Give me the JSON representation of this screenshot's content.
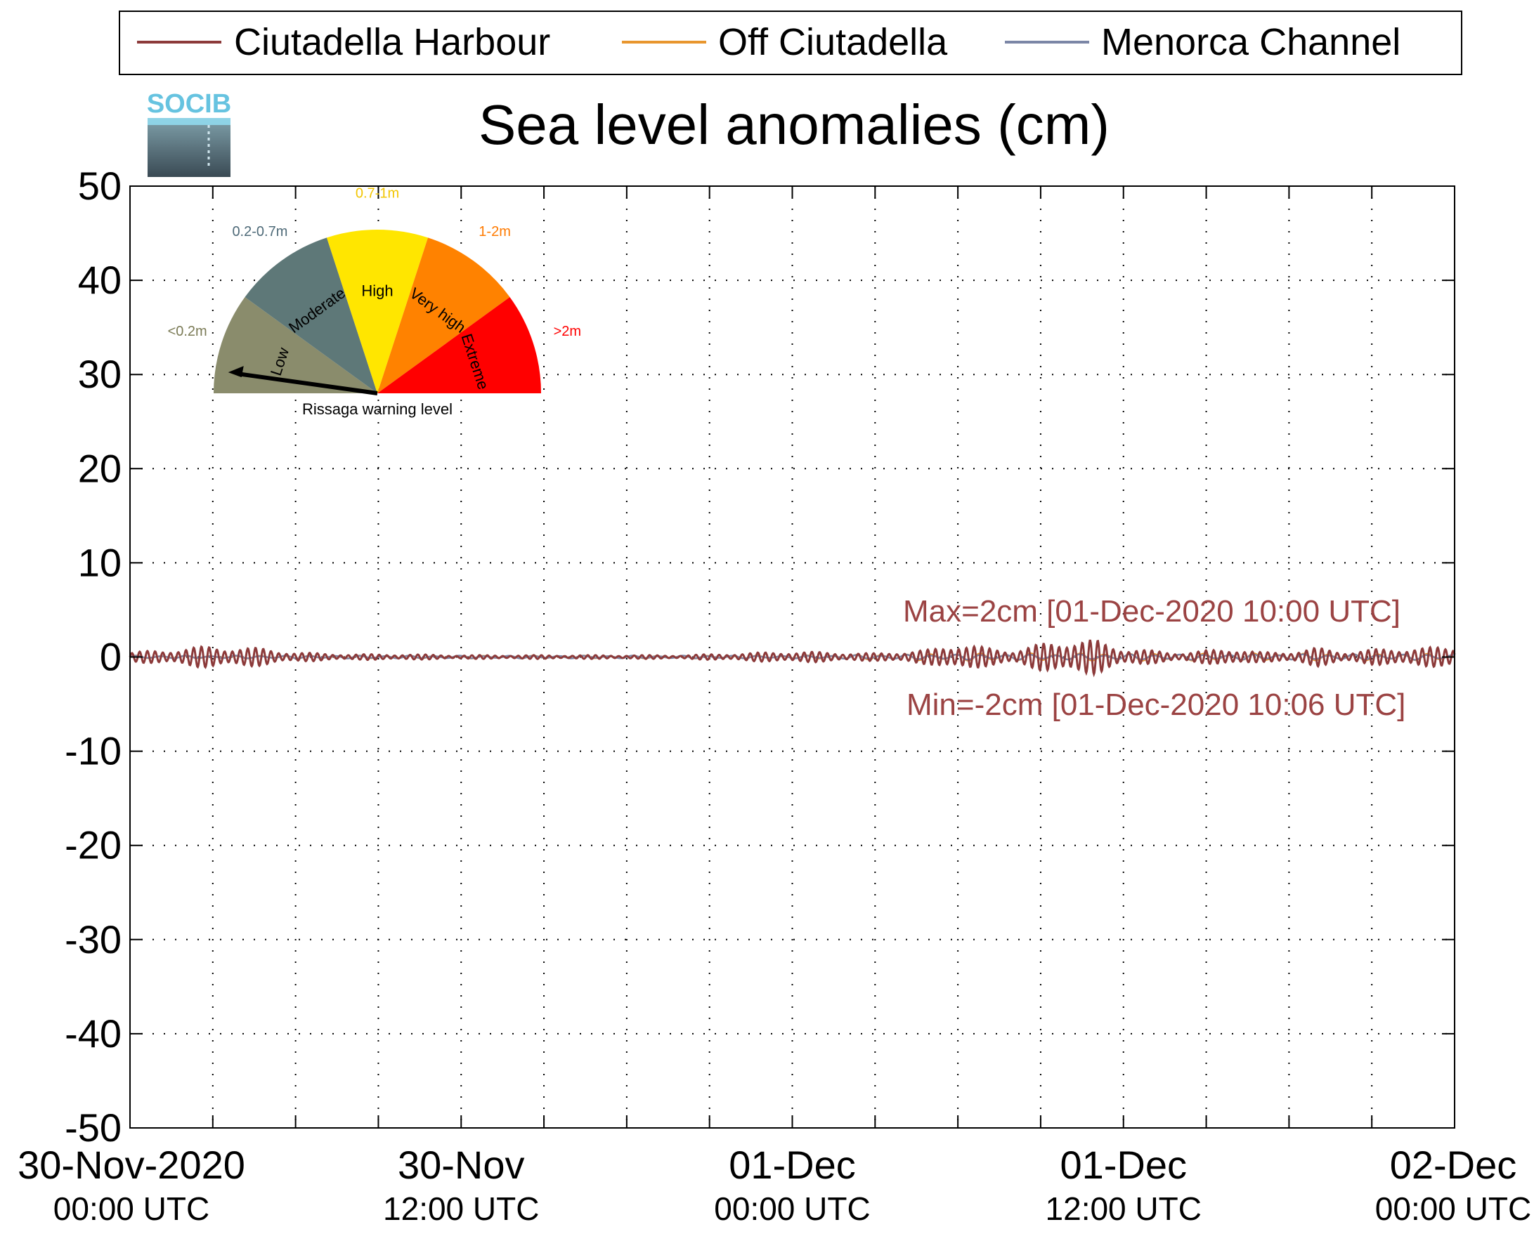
{
  "logo": {
    "text": "SOCIB"
  },
  "legend": {
    "items": [
      {
        "label": "Ciutadella Harbour",
        "color": "#8c3a3a"
      },
      {
        "label": "Off Ciutadella",
        "color": "#e8962e"
      },
      {
        "label": "Menorca Channel",
        "color": "#7b86a6"
      }
    ]
  },
  "gauge": {
    "title": "Rissaga warning level",
    "needle_level": "Low",
    "sectors": [
      {
        "name": "Low",
        "range": "<0.2m",
        "color": "#8a8c6c",
        "range_color": "#7a7a55"
      },
      {
        "name": "Moderate",
        "range": "0.2-0.7m",
        "color": "#5e7878",
        "range_color": "#4e6a78"
      },
      {
        "name": "High",
        "range": "0.7-1m",
        "color": "#ffe600",
        "range_color": "#f2c500"
      },
      {
        "name": "Very high",
        "range": "1-2m",
        "color": "#ff8200",
        "range_color": "#ff7a00"
      },
      {
        "name": "Extreme",
        "range": ">2m",
        "color": "#ff0000",
        "range_color": "#ff0000"
      }
    ]
  },
  "annotations": {
    "max": "Max=2cm [01-Dec-2020 10:00 UTC]",
    "min": "Min=-2cm [01-Dec-2020 10:06 UTC]",
    "color": "#9b4343"
  },
  "chart_data": {
    "type": "line",
    "title": "Sea level anomalies (cm)",
    "xlabel": "",
    "ylabel": "",
    "x_range_hours": [
      0,
      48
    ],
    "ylim": [
      -50,
      50
    ],
    "yticks": [
      -50,
      -40,
      -30,
      -20,
      -10,
      0,
      10,
      20,
      30,
      40,
      50
    ],
    "xticks": [
      {
        "hour": 0,
        "line1": "30-Nov-2020",
        "line2": "00:00 UTC"
      },
      {
        "hour": 12,
        "line1": "30-Nov",
        "line2": "12:00 UTC"
      },
      {
        "hour": 24,
        "line1": "01-Dec",
        "line2": "00:00 UTC"
      },
      {
        "hour": 36,
        "line1": "01-Dec",
        "line2": "12:00 UTC"
      },
      {
        "hour": 48,
        "line1": "02-Dec",
        "line2": "00:00 UTC"
      }
    ],
    "grid": true,
    "legend_position": "top",
    "series": [
      {
        "name": "Ciutadella Harbour",
        "color": "#8c3a3a",
        "envelope_amplitude_cm": {
          "x": [
            0,
            3,
            5,
            6,
            8,
            10,
            12,
            16,
            20,
            22,
            24,
            27,
            29,
            30,
            31,
            32,
            33,
            34,
            35,
            36,
            37,
            38,
            39,
            40,
            41,
            42,
            43,
            44,
            45,
            46,
            47,
            48
          ],
          "y": [
            0.5,
            1.2,
            0.9,
            0.5,
            0.3,
            0.3,
            0.2,
            0.2,
            0.2,
            0.4,
            0.6,
            0.4,
            0.8,
            1.6,
            1.0,
            0.8,
            1.4,
            2.0,
            1.8,
            1.0,
            0.7,
            0.5,
            0.7,
            1.0,
            0.5,
            0.6,
            1.0,
            0.6,
            0.8,
            1.0,
            1.0,
            1.2
          ]
        }
      },
      {
        "name": "Off Ciutadella",
        "color": "#e8962e",
        "envelope_amplitude_cm": {
          "x": [
            0,
            24,
            30,
            36,
            48
          ],
          "y": [
            0.15,
            0.15,
            0.4,
            0.4,
            0.35
          ]
        }
      },
      {
        "name": "Menorca Channel",
        "color": "#7b86a6",
        "envelope_amplitude_cm": {
          "x": [
            0,
            24,
            30,
            36,
            48
          ],
          "y": [
            0.15,
            0.15,
            0.3,
            0.3,
            0.3
          ]
        }
      }
    ]
  }
}
